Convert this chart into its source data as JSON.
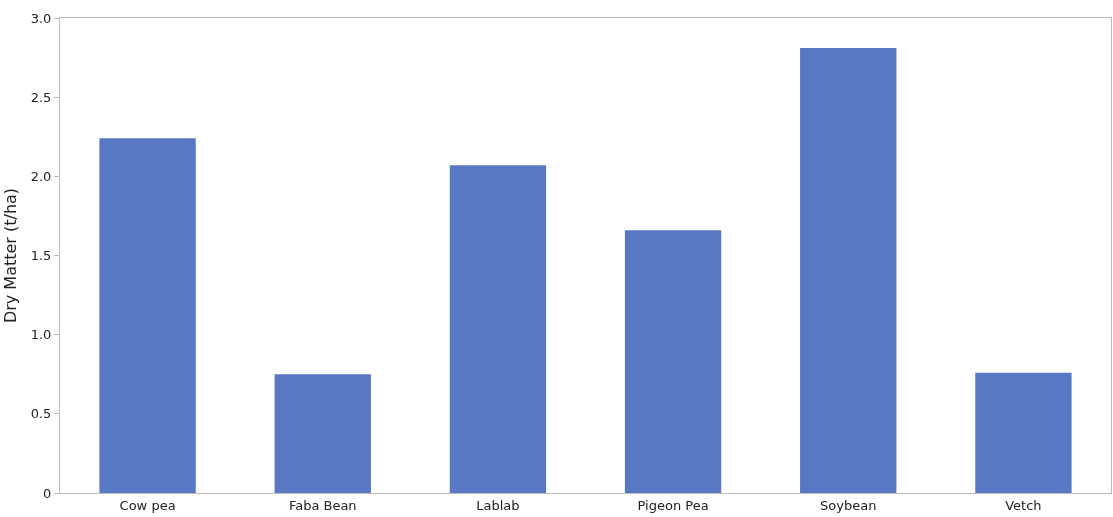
{
  "chart_data": {
    "type": "bar",
    "ylabel": "Dry Matter (t/ha)",
    "categories": [
      "Cow pea",
      "Faba Bean",
      "Lablab",
      "Pigeon Pea",
      "Soybean",
      "Vetch"
    ],
    "values": [
      2.24,
      0.75,
      2.07,
      1.66,
      2.81,
      0.76
    ],
    "color": "#5878c4",
    "ylim": [
      0,
      3
    ],
    "yticks": [
      0,
      {
        "value": 0.5,
        "label": "0.5"
      },
      {
        "value": 1,
        "label": "1.0"
      },
      {
        "value": 1.5,
        "label": "1.5"
      },
      {
        "value": 2,
        "label": "2.0"
      },
      {
        "value": 2.5,
        "label": "2.5"
      },
      {
        "value": 3,
        "label": "3.0"
      }
    ],
    "grid": false
  }
}
